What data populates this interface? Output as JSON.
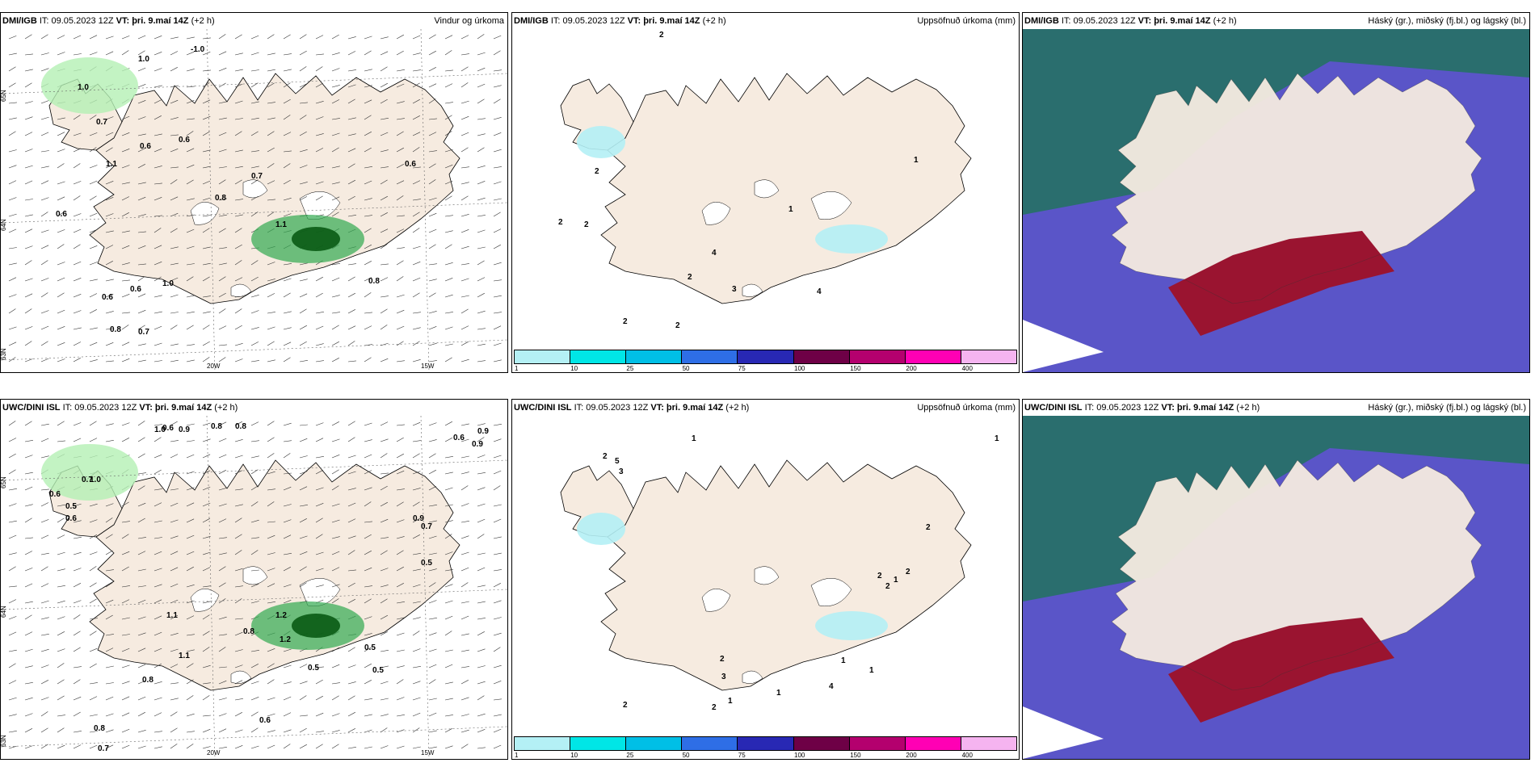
{
  "panels": [
    {
      "src": "DMI/IGB",
      "it": "IT: 09.05.2023 12Z",
      "vt": "VT: þri. 9.maí 14Z",
      "lead": "(+2 h)",
      "right": "Vindur og úrkoma",
      "kind": "wind",
      "labels": [
        "1.0",
        "-1.0",
        "1.0",
        "0.7",
        "0.6",
        "0.6",
        "0.7",
        "1.1",
        "0.8",
        "0.6",
        "0.6",
        "1.1",
        "1.0",
        "0.6",
        "0.8",
        "0.7",
        "0.8",
        "0.6"
      ],
      "ticks": [
        "65N",
        "64N",
        "63N",
        "20W",
        "15W"
      ]
    },
    {
      "src": "DMI/IGB",
      "it": "IT: 09.05.2023 12Z",
      "vt": "VT: þri. 9.maí 14Z",
      "lead": "(+2 h)",
      "right": "Uppsöfnuð úrkoma (mm)",
      "kind": "precip",
      "labels": [
        "2",
        "2",
        "2",
        "2",
        "1",
        "1",
        "4",
        "2",
        "3",
        "2",
        "2",
        "4"
      ],
      "ticks": []
    },
    {
      "src": "DMI/IGB",
      "it": "IT: 09.05.2023 12Z",
      "vt": "VT: þri. 9.maí 14Z",
      "lead": "(+2 h)",
      "right": "Háský (gr.), miðský (fj.bl.) og lágský (bl.)",
      "kind": "cloud",
      "labels": [],
      "ticks": []
    },
    {
      "src": "UWC/DINI ISL",
      "it": "IT: 09.05.2023 12Z",
      "vt": "VT: þri. 9.maí 14Z",
      "lead": "(+2 h)",
      "right": "",
      "kind": "wind",
      "labels": [
        "1.0",
        "0.9",
        "0.8",
        "0.8",
        "0.6",
        "0.9",
        "0.9",
        "0.6",
        "0.7",
        "1.0",
        "0.5",
        "1.1",
        "1.2",
        "0.6",
        "0.8",
        "1.2",
        "1.1",
        "0.9",
        "0.7",
        "0.5",
        "0.6",
        "0.8",
        "0.5",
        "0.5",
        "0.6",
        "0.5",
        "0.8",
        "0.7"
      ],
      "ticks": [
        "65N",
        "64N",
        "63N",
        "20W",
        "15W"
      ]
    },
    {
      "src": "UWC/DINI ISL",
      "it": "IT: 09.05.2023 12Z",
      "vt": "VT: þri. 9.maí 14Z",
      "lead": "(+2 h)",
      "right": "Uppsöfnuð úrkoma (mm)",
      "kind": "precip",
      "labels": [
        "1",
        "1",
        "5",
        "3",
        "2",
        "2",
        "1",
        "2",
        "2",
        "2",
        "1",
        "1",
        "4",
        "3",
        "2",
        "1",
        "2",
        "2",
        "1",
        "1"
      ],
      "ticks": []
    },
    {
      "src": "UWC/DINI ISL",
      "it": "IT: 09.05.2023 12Z",
      "vt": "VT: þri. 9.maí 14Z",
      "lead": "(+2 h)",
      "right": "Háský (gr.), miðský (fj.bl.) og lágský (bl.)",
      "kind": "cloud",
      "labels": [],
      "ticks": []
    }
  ],
  "colorbar": {
    "labels": [
      "1",
      "10",
      "25",
      "50",
      "75",
      "100",
      "150",
      "200",
      "400"
    ],
    "colors": [
      "#b4f0f5",
      "#00e6e6",
      "#00bfe6",
      "#2e6ee6",
      "#2828b4",
      "#6e0046",
      "#b4006e",
      "#ff00b4",
      "#f5b4f0"
    ]
  },
  "colors": {
    "land": "#f6ebe0",
    "green_light": "#b4f0b4",
    "green": "#32aa50",
    "green_dark": "#0a5a14",
    "cyan": "#b4f0f5",
    "cloud_teal": "#2a6e6e",
    "cloud_blue": "#5a55c8",
    "cloud_red": "#9a1430"
  }
}
